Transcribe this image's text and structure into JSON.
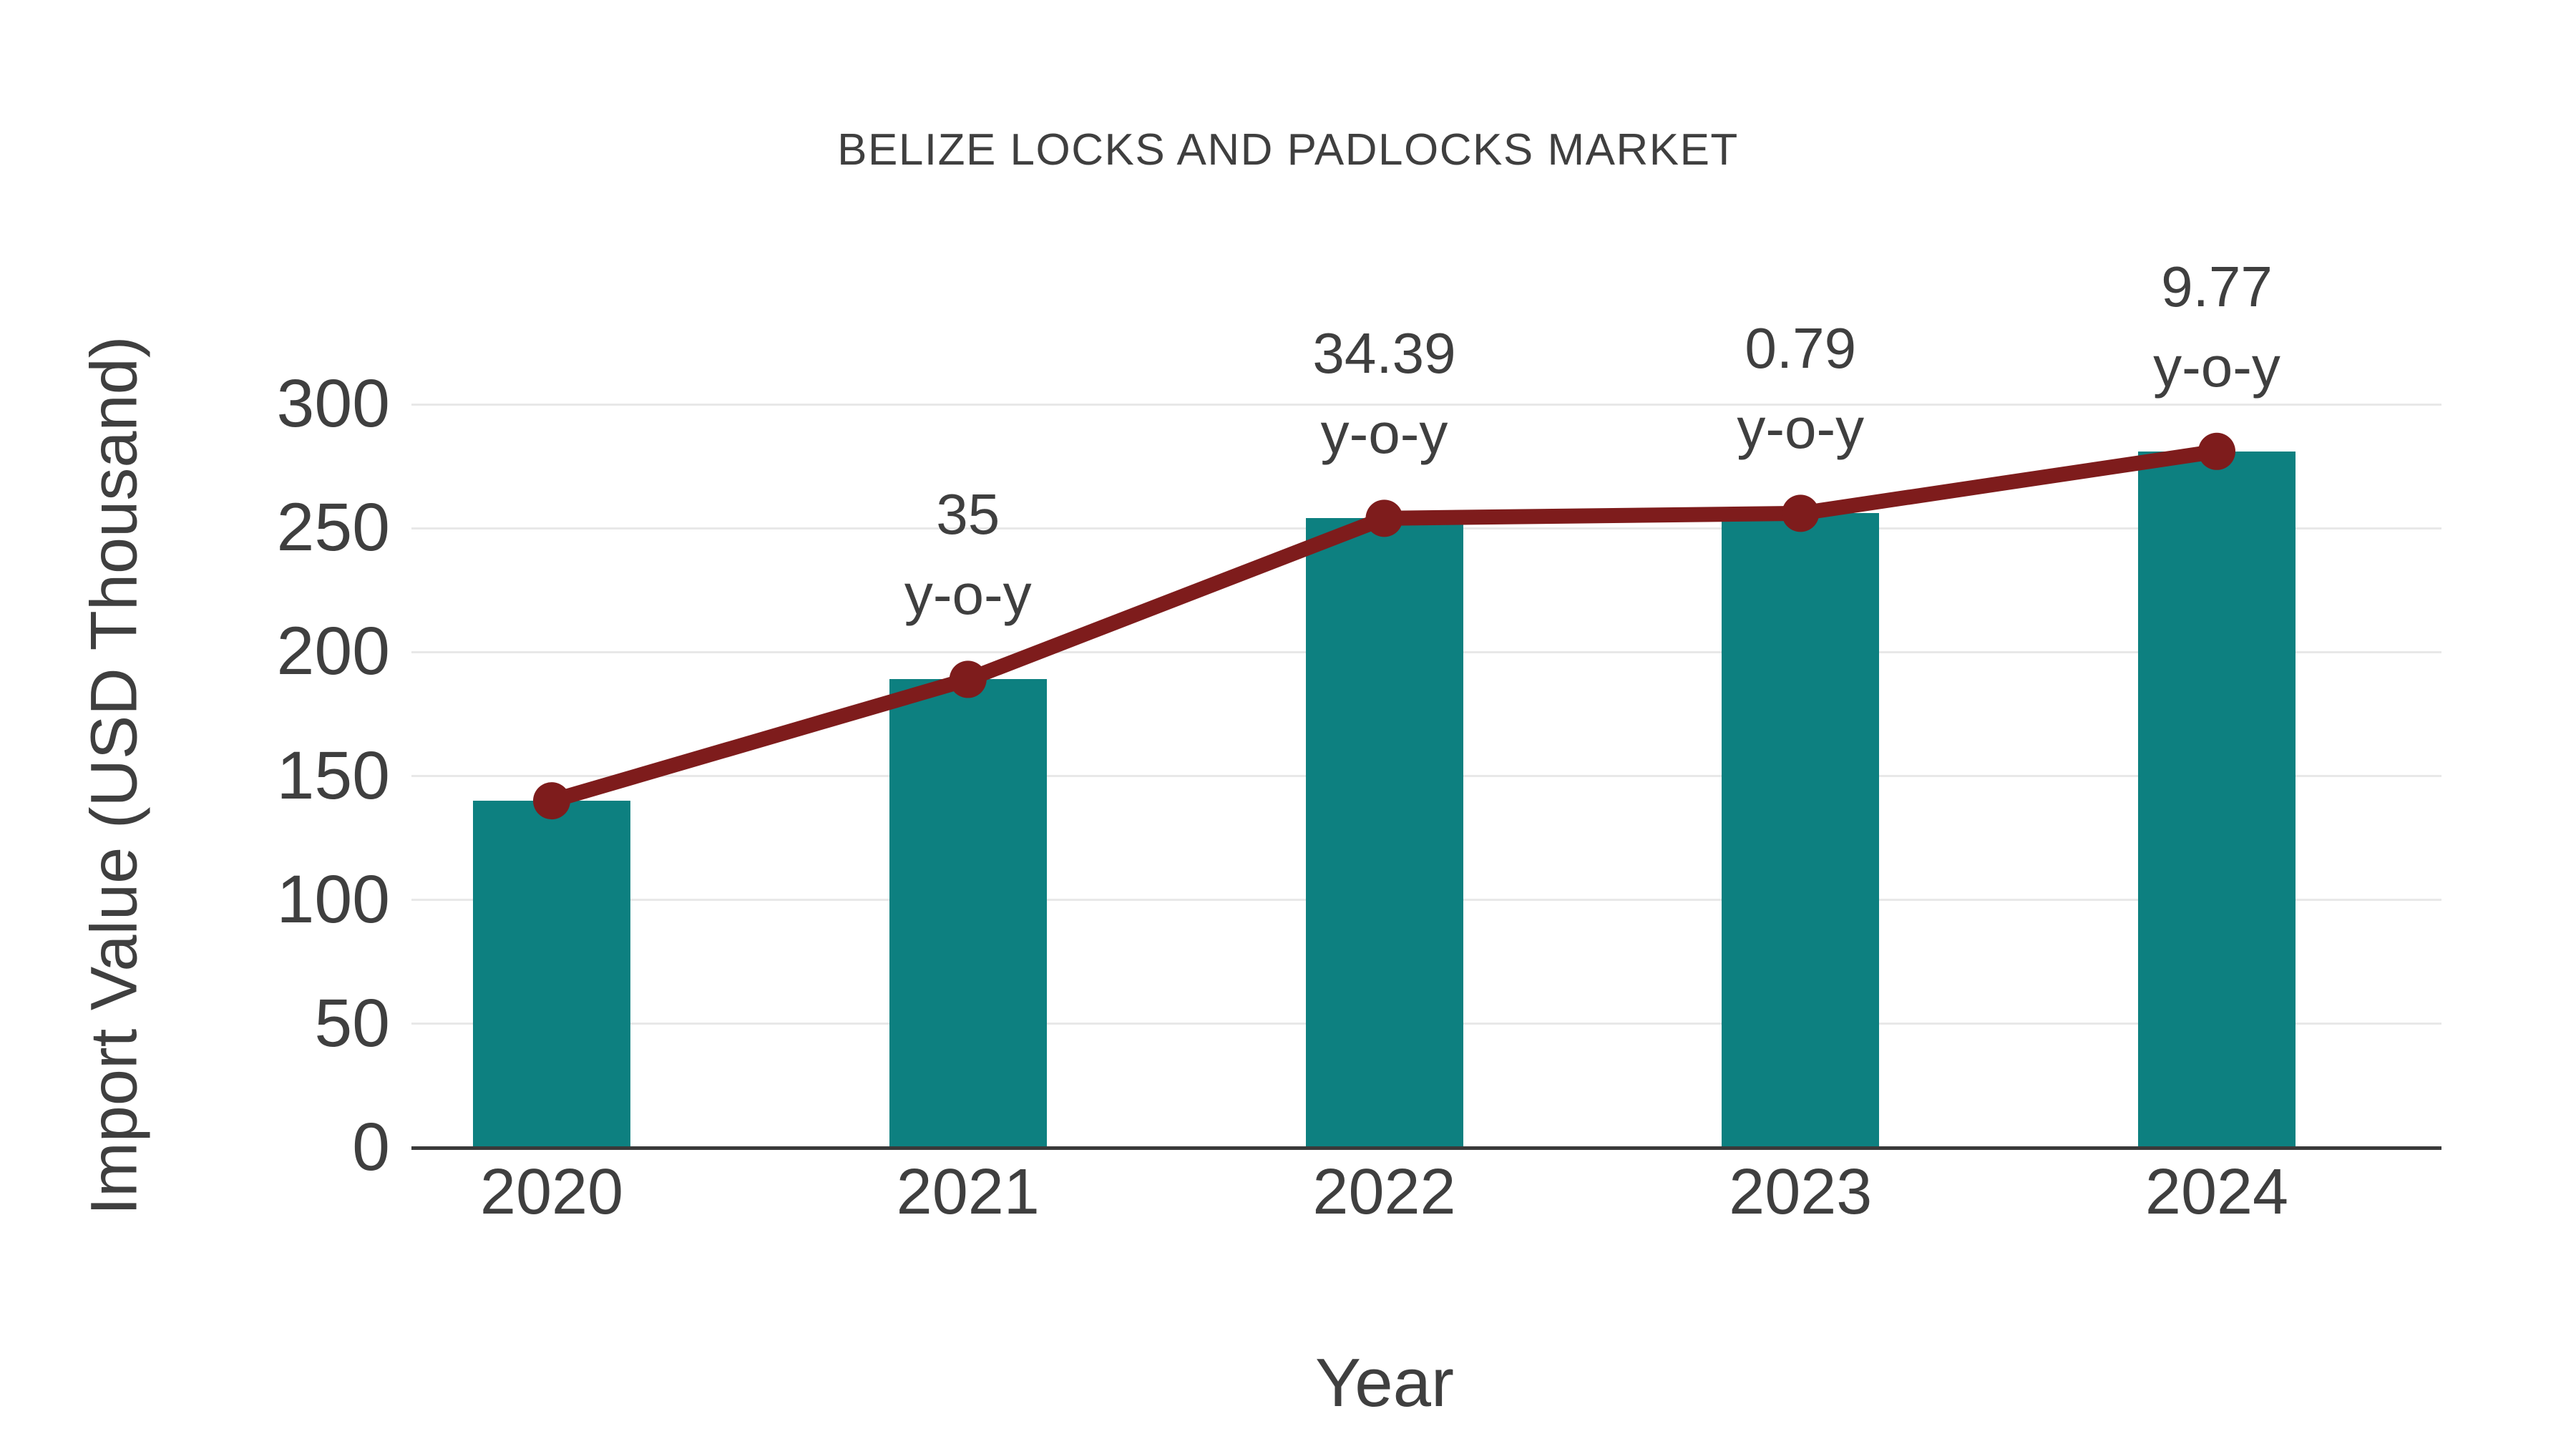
{
  "chart_data": {
    "type": "bar",
    "title": "BELIZE LOCKS AND PADLOCKS MARKET",
    "xlabel": "Year",
    "ylabel": "Import Value (USD Thousand)",
    "categories": [
      "2020",
      "2021",
      "2022",
      "2023",
      "2024"
    ],
    "series": [
      {
        "name": "import-value-bars",
        "type": "bar",
        "values": [
          140,
          189,
          254,
          256,
          281
        ]
      },
      {
        "name": "import-value-trend-line",
        "type": "line",
        "values": [
          140,
          189,
          254,
          256,
          281
        ]
      }
    ],
    "annotations": [
      {
        "category": "2021",
        "line1": "35",
        "line2": "y-o-y"
      },
      {
        "category": "2022",
        "line1": "34.39",
        "line2": "y-o-y"
      },
      {
        "category": "2023",
        "line1": "0.79",
        "line2": "y-o-y"
      },
      {
        "category": "2024",
        "line1": "9.77",
        "line2": "y-o-y"
      }
    ],
    "yticks": [
      0,
      50,
      100,
      150,
      200,
      250,
      300
    ],
    "ylim": [
      0,
      300
    ],
    "grid": true,
    "legend": false,
    "colors": {
      "bar": "#0d8080",
      "line": "#7e1c1c",
      "marker": "#7e1c1c",
      "text": "#3f3f3f",
      "grid": "#e8e8e8",
      "axis": "#3a3a3a",
      "background": "#ffffff"
    }
  }
}
